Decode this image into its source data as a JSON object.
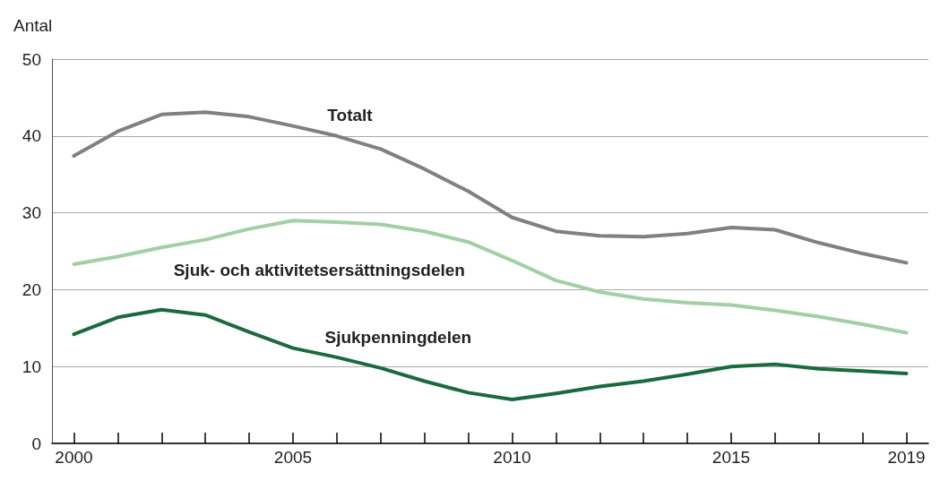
{
  "chart_data": {
    "type": "line",
    "ylabel": "Antal",
    "x": [
      2000,
      2001,
      2002,
      2003,
      2004,
      2005,
      2006,
      2007,
      2008,
      2009,
      2010,
      2011,
      2012,
      2013,
      2014,
      2015,
      2016,
      2017,
      2018,
      2019
    ],
    "series": [
      {
        "name": "Totalt",
        "color": "#808080",
        "values": [
          37.4,
          40.6,
          42.8,
          43.1,
          42.5,
          41.3,
          40.0,
          38.3,
          35.7,
          32.8,
          29.4,
          27.6,
          27.0,
          26.9,
          27.3,
          28.1,
          27.8,
          26.1,
          24.7,
          23.5
        ]
      },
      {
        "name": "Sjuk- och aktivitetsersättningsdelen",
        "color": "#a3cfa5",
        "values": [
          23.3,
          24.3,
          25.5,
          26.5,
          27.9,
          29.0,
          28.8,
          28.5,
          27.6,
          26.2,
          23.8,
          21.2,
          19.7,
          18.8,
          18.3,
          18.0,
          17.3,
          16.5,
          15.5,
          14.4
        ]
      },
      {
        "name": "Sjukpenningdelen",
        "color": "#1a6b3c",
        "values": [
          14.2,
          16.4,
          17.4,
          16.7,
          14.5,
          12.4,
          11.2,
          9.8,
          8.1,
          6.6,
          5.7,
          6.5,
          7.4,
          8.1,
          9.0,
          10.0,
          10.3,
          9.7,
          9.4,
          9.1
        ]
      }
    ],
    "xlim": [
      1999.5,
      2019.5
    ],
    "xticks": [
      2000,
      {
        "value": 2001,
        "label": null
      },
      {
        "value": 2002,
        "label": null
      },
      {
        "value": 2003,
        "label": null
      },
      {
        "value": 2004,
        "label": null
      },
      2005,
      {
        "value": 2006,
        "label": null
      },
      {
        "value": 2007,
        "label": null
      },
      {
        "value": 2008,
        "label": null
      },
      {
        "value": 2009,
        "label": null
      },
      2010,
      {
        "value": 2011,
        "label": null
      },
      {
        "value": 2012,
        "label": null
      },
      {
        "value": 2013,
        "label": null
      },
      {
        "value": 2014,
        "label": null
      },
      2015,
      {
        "value": 2016,
        "label": null
      },
      {
        "value": 2017,
        "label": null
      },
      {
        "value": 2018,
        "label": null
      },
      2019
    ],
    "ylim": [
      0,
      50
    ],
    "yticks": [
      0,
      10,
      20,
      30,
      40,
      50
    ],
    "grid": "y",
    "legend": false,
    "marker": "none",
    "line_style": "solid"
  }
}
